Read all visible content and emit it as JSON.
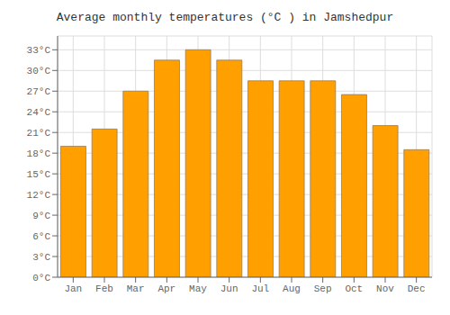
{
  "chart_data": {
    "type": "bar",
    "title": "Average monthly temperatures (°C ) in Jamshedpur",
    "categories": [
      "Jan",
      "Feb",
      "Mar",
      "Apr",
      "May",
      "Jun",
      "Jul",
      "Aug",
      "Sep",
      "Oct",
      "Nov",
      "Dec"
    ],
    "values": [
      19,
      21.5,
      27,
      31.5,
      33,
      31.5,
      28.5,
      28.5,
      28.5,
      26.5,
      22,
      18.5
    ],
    "color": "#FFA000",
    "ylim": [
      0,
      35
    ],
    "yticks": [
      {
        "value": 0,
        "label": "0°C"
      },
      {
        "value": 3,
        "label": "3°C"
      },
      {
        "value": 6,
        "label": "6°C"
      },
      {
        "value": 9,
        "label": "9°C"
      },
      {
        "value": 12,
        "label": "12°C"
      },
      {
        "value": 15,
        "label": "15°C"
      },
      {
        "value": 18,
        "label": "18°C"
      },
      {
        "value": 21,
        "label": "21°C"
      },
      {
        "value": 24,
        "label": "24°C"
      },
      {
        "value": 27,
        "label": "27°C"
      },
      {
        "value": 30,
        "label": "30°C"
      },
      {
        "value": 33,
        "label": "33°C"
      }
    ],
    "grid": true
  }
}
